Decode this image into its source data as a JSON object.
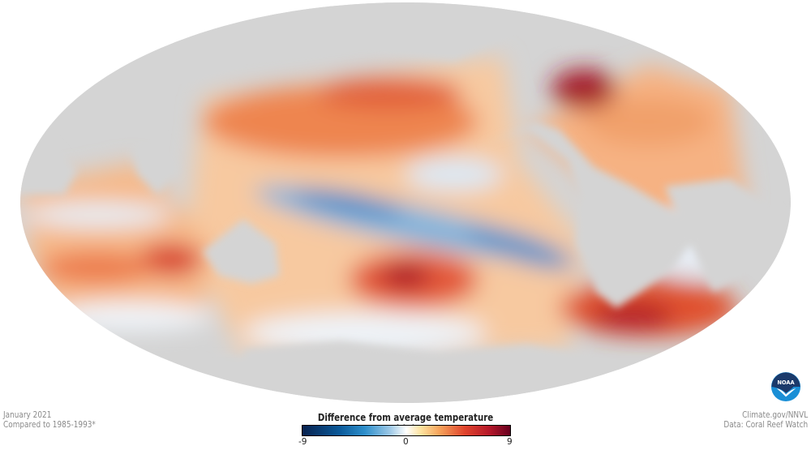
{
  "map": {
    "projection": "mollweide",
    "land_color": "#d4d4d4",
    "variable": "sea surface temperature anomaly"
  },
  "info_left": {
    "date": "January 2021",
    "baseline": "Compared to 1985-1993*"
  },
  "info_right": {
    "credit": "Climate.gov/NNVL",
    "source": "Data: Coral Reef Watch"
  },
  "legend": {
    "title": "Difference from average temperature ( °F)",
    "min_label": "-9",
    "mid_label": "0",
    "max_label": "9",
    "colors": [
      "#08224f",
      "#2e8fcb",
      "#ffffff",
      "#f6a35b",
      "#b5182a",
      "#67001f"
    ]
  },
  "logo": {
    "text": "NOAA"
  }
}
